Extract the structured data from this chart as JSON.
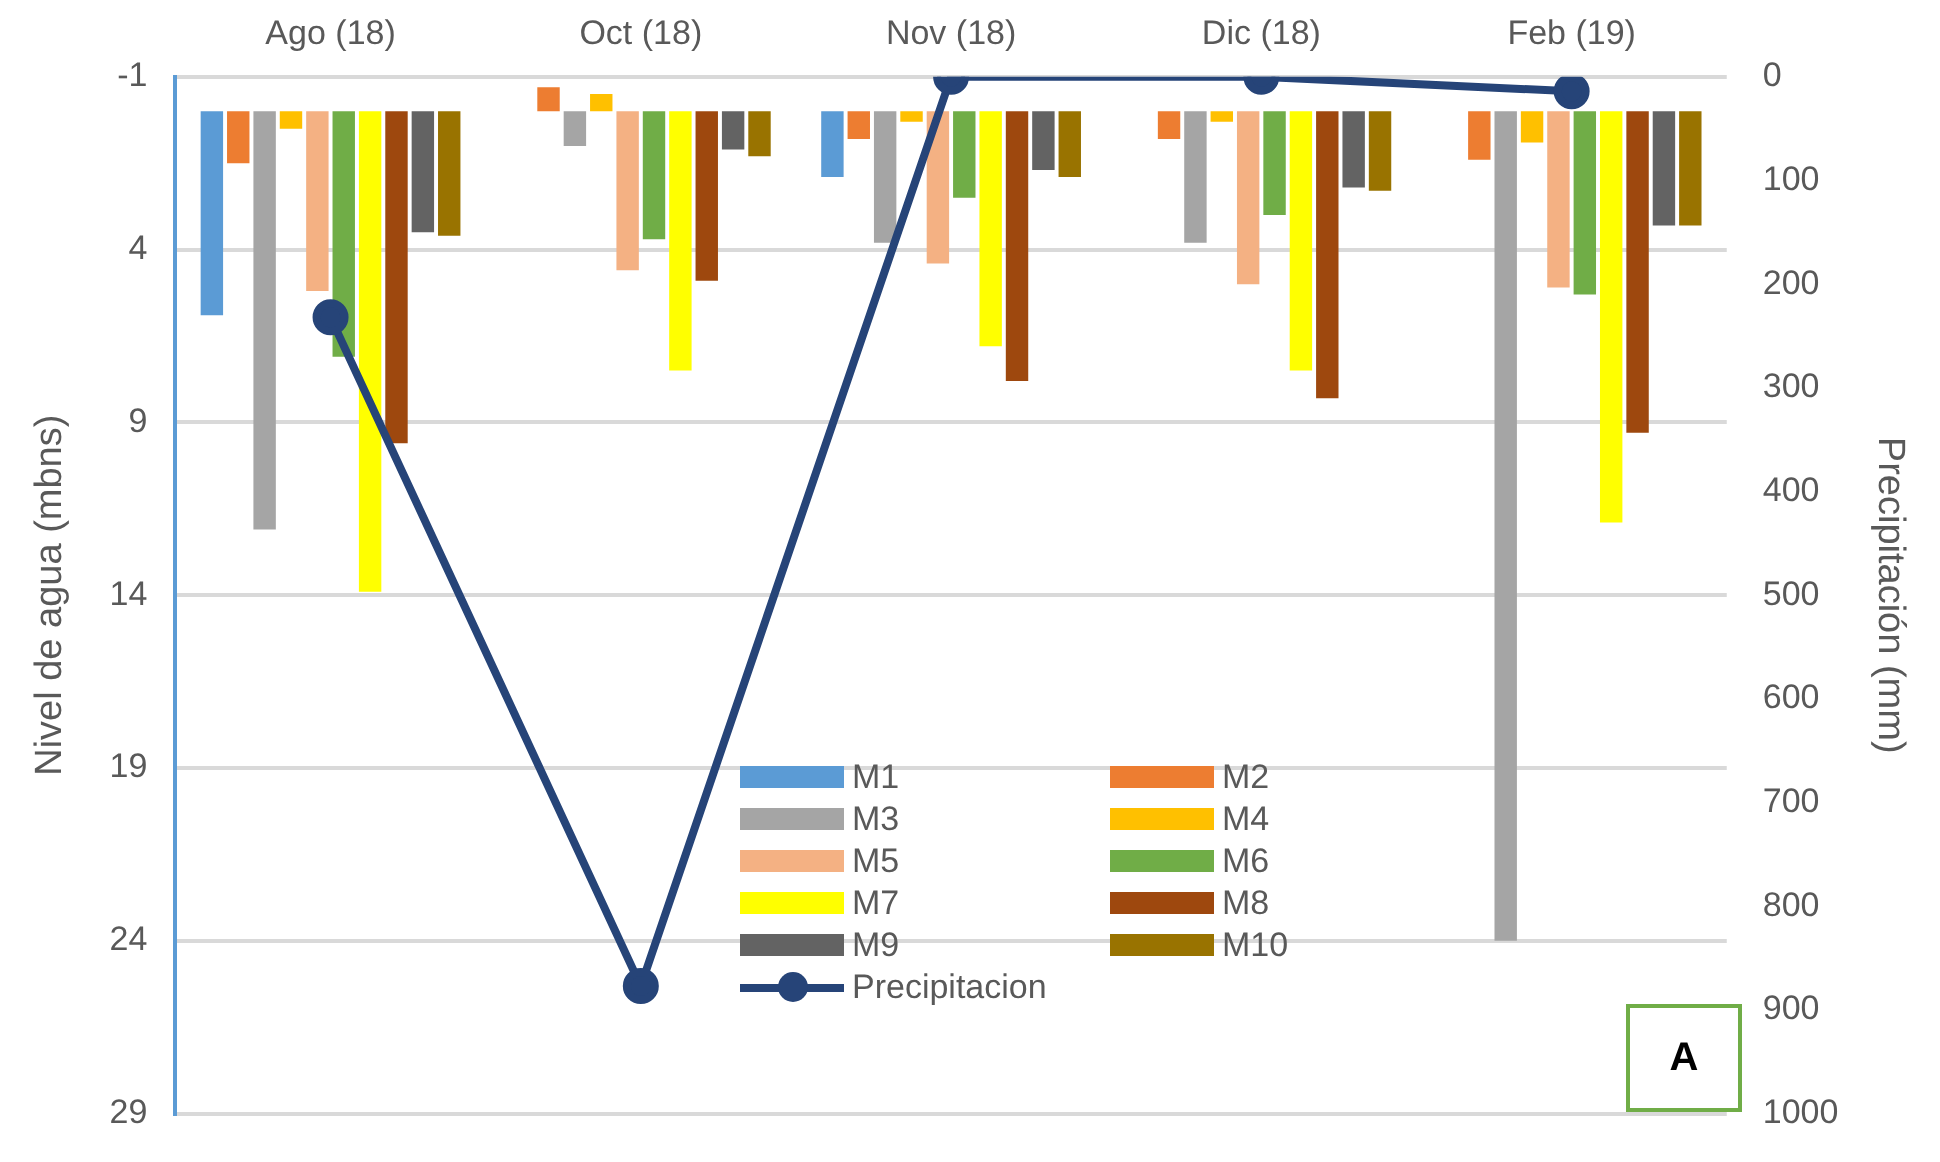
{
  "chart_data": {
    "type": "bar",
    "categories": [
      "Ago (18)",
      "Oct (18)",
      "Nov (18)",
      "Dic (18)",
      "Feb (19)"
    ],
    "ylabel": "Nivel de agua (mbns)",
    "y2label": "Precipitación (mm)",
    "ylim": [
      29,
      -1
    ],
    "yticks": [
      -1,
      4,
      9,
      14,
      19,
      24,
      29
    ],
    "y2lim": [
      1000,
      0
    ],
    "y2ticks": [
      0,
      100,
      200,
      300,
      400,
      500,
      600,
      700,
      800,
      900,
      1000
    ],
    "grid": "y",
    "legend": "bottom",
    "annotations": [
      "A"
    ],
    "series": [
      {
        "name": "M1",
        "color": "#5b9bd5",
        "values": [
          5.9,
          null,
          1.9,
          null,
          null
        ]
      },
      {
        "name": "M2",
        "color": "#ed7d31",
        "values": [
          1.5,
          -0.7,
          0.8,
          0.8,
          1.4
        ]
      },
      {
        "name": "M3",
        "color": "#a5a5a5",
        "values": [
          12.1,
          1.0,
          3.8,
          3.8,
          24.0
        ]
      },
      {
        "name": "M4",
        "color": "#ffc000",
        "values": [
          0.5,
          -0.5,
          0.3,
          0.3,
          0.9
        ]
      },
      {
        "name": "M5",
        "color": "#f4b183",
        "values": [
          5.2,
          4.6,
          4.4,
          5.0,
          5.1
        ]
      },
      {
        "name": "M6",
        "color": "#70ad47",
        "values": [
          7.1,
          3.7,
          2.5,
          3.0,
          5.3
        ]
      },
      {
        "name": "M7",
        "color": "#ffff00",
        "values": [
          13.9,
          7.5,
          6.8,
          7.5,
          11.9
        ]
      },
      {
        "name": "M8",
        "color": "#9e480e",
        "values": [
          9.6,
          4.9,
          7.8,
          8.3,
          9.3
        ]
      },
      {
        "name": "M9",
        "color": "#636363",
        "values": [
          3.5,
          1.1,
          1.7,
          2.2,
          3.3
        ]
      },
      {
        "name": "M10",
        "color": "#997300",
        "values": [
          3.6,
          1.3,
          1.9,
          2.3,
          3.3
        ]
      },
      {
        "name": "Precipitacion",
        "type": "line",
        "axis": "y2",
        "color": "#264478",
        "marker": "circle",
        "values": [
          232,
          877,
          0,
          0,
          14
        ]
      }
    ]
  }
}
